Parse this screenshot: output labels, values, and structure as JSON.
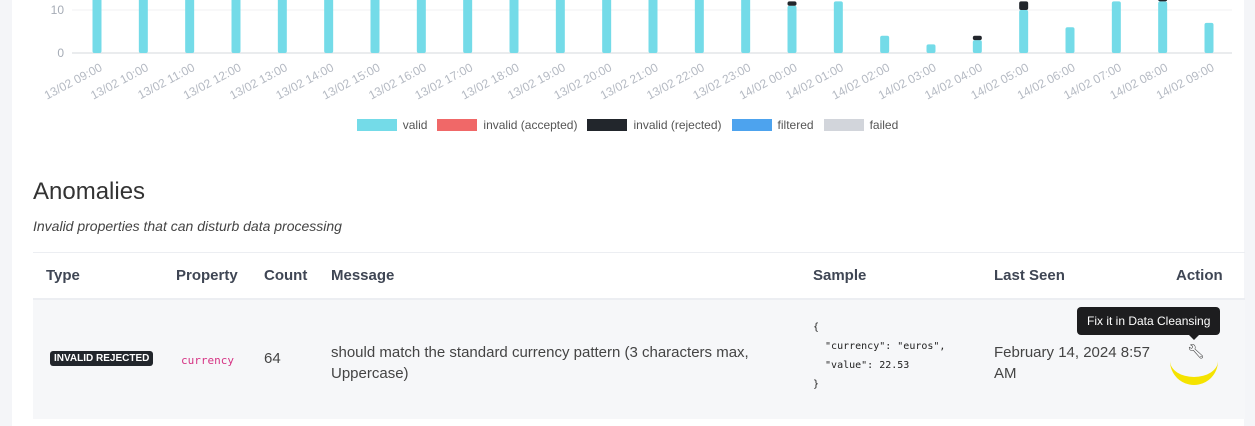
{
  "chart_data": {
    "type": "bar",
    "stacked": true,
    "categories": [
      "13/02 09:00",
      "13/02 10:00",
      "13/02 11:00",
      "13/02 12:00",
      "13/02 13:00",
      "13/02 14:00",
      "13/02 15:00",
      "13/02 16:00",
      "13/02 17:00",
      "13/02 18:00",
      "13/02 19:00",
      "13/02 20:00",
      "13/02 21:00",
      "13/02 22:00",
      "13/02 23:00",
      "14/02 00:00",
      "14/02 01:00",
      "14/02 02:00",
      "14/02 03:00",
      "14/02 04:00",
      "14/02 05:00",
      "14/02 06:00",
      "14/02 07:00",
      "14/02 08:00",
      "14/02 09:00"
    ],
    "series": [
      {
        "name": "valid",
        "color": "#74dbe8",
        "values": [
          15,
          15,
          15,
          15,
          15,
          15,
          15,
          15,
          15,
          15,
          15,
          15,
          15,
          15,
          15,
          11,
          12,
          4,
          2,
          3,
          10,
          6,
          12,
          12,
          7
        ]
      },
      {
        "name": "invalid (accepted)",
        "color": "#f06868",
        "values": [
          0,
          0,
          0,
          0,
          0,
          0,
          0,
          0,
          0,
          0,
          0,
          0,
          0,
          0,
          0,
          0,
          0,
          0,
          0,
          0,
          0,
          0,
          0,
          0,
          0
        ]
      },
      {
        "name": "invalid (rejected)",
        "color": "#22262c",
        "values": [
          0,
          0,
          0,
          0,
          0,
          0,
          0,
          0,
          0,
          0,
          0,
          0,
          0,
          0,
          0,
          1,
          0,
          0,
          0,
          1,
          2,
          0,
          0,
          1,
          0
        ]
      },
      {
        "name": "filtered",
        "color": "#4da3ee",
        "values": [
          0,
          0,
          0,
          0,
          0,
          0,
          0,
          0,
          0,
          0,
          0,
          0,
          0,
          0,
          0,
          0,
          0,
          0,
          0,
          0,
          0,
          0,
          0,
          0,
          0
        ]
      },
      {
        "name": "failed",
        "color": "#d2d5db",
        "values": [
          0,
          0,
          0,
          0,
          0,
          0,
          0,
          0,
          0,
          0,
          0,
          0,
          0,
          0,
          0,
          0,
          0,
          0,
          0,
          0,
          0,
          0,
          0,
          0,
          0
        ]
      }
    ],
    "yticks": [
      0,
      10
    ],
    "legend": "bottom",
    "grid": true
  },
  "anomalies": {
    "title": "Anomalies",
    "subtitle": "Invalid properties that can disturb data processing",
    "columns": [
      "Type",
      "Property",
      "Count",
      "Message",
      "Sample",
      "Last Seen",
      "Action"
    ],
    "rows": [
      {
        "type": "INVALID REJECTED",
        "property": "currency",
        "count": "64",
        "message": "should match the standard currency pattern (3 characters max, Uppercase)",
        "sample": "{\n  \"currency\": \"euros\",\n  \"value\": 22.53\n}",
        "last_seen": "February 14, 2024 8:57 AM",
        "action_icon": "wrench-icon",
        "action_tooltip": "Fix it in Data Cleansing"
      }
    ]
  }
}
